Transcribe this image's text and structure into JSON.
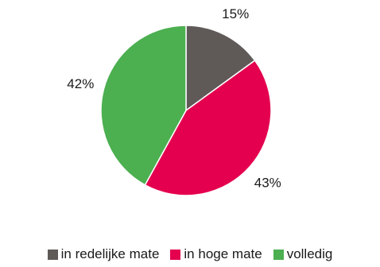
{
  "chart_data": {
    "type": "pie",
    "slices": [
      {
        "label": "in redelijke mate",
        "value": 15,
        "value_label": "15%",
        "color": "#5f5a58"
      },
      {
        "label": "in hoge mate",
        "value": 43,
        "value_label": "43%",
        "color": "#e4004f"
      },
      {
        "label": "volledig",
        "value": 42,
        "value_label": "42%",
        "color": "#4caf50"
      }
    ],
    "legend_position": "bottom"
  }
}
